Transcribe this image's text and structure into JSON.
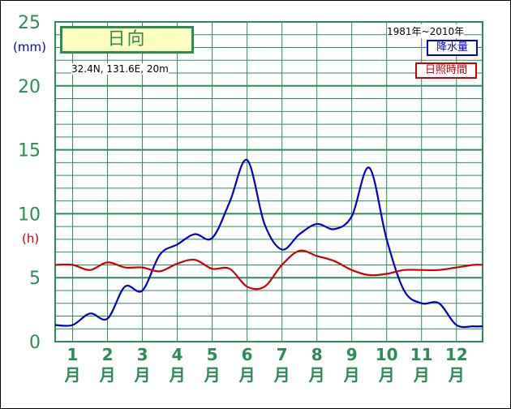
{
  "title": "日向",
  "location": "32.4N,  131.6E,  20m",
  "period": "1981年~2010年",
  "units": {
    "rain": "(mm)",
    "sun": "(h)"
  },
  "colors": {
    "grid": "#2e8b57",
    "rain": "#0000cc",
    "sun": "#cc0000",
    "title_bg": "#ffffc0"
  },
  "chart_data": {
    "type": "line",
    "ylim": [
      0,
      25
    ],
    "yticks": [
      "0",
      "5",
      "10",
      "15",
      "20",
      "25"
    ],
    "month_numbers": [
      "1",
      "2",
      "3",
      "4",
      "5",
      "6",
      "7",
      "8",
      "9",
      "10",
      "11",
      "12"
    ],
    "month_suffix": "月",
    "x": [
      1.0,
      1.5,
      2.0,
      2.5,
      3.0,
      3.5,
      4.0,
      4.5,
      5.0,
      5.5,
      6.0,
      6.5,
      7.0,
      7.5,
      8.0,
      8.5,
      9.0,
      9.5,
      10.0,
      10.5,
      11.0,
      11.5,
      12.0,
      12.5
    ],
    "series": [
      {
        "name": "降水量",
        "color": "#0000cc",
        "values": [
          1.3,
          2.2,
          1.8,
          4.3,
          4.0,
          6.8,
          7.6,
          8.4,
          8.1,
          10.9,
          14.2,
          9.2,
          7.2,
          8.4,
          9.2,
          8.8,
          9.8,
          13.6,
          8.0,
          4.0,
          3.0,
          3.0,
          1.3,
          1.2
        ]
      },
      {
        "name": "日照時間",
        "color": "#cc0000",
        "values": [
          6.0,
          5.6,
          6.2,
          5.8,
          5.8,
          5.5,
          6.1,
          6.4,
          5.7,
          5.7,
          4.3,
          4.3,
          6.0,
          7.1,
          6.7,
          6.3,
          5.6,
          5.2,
          5.3,
          5.6,
          5.6,
          5.6,
          5.8,
          6.0
        ]
      }
    ]
  }
}
